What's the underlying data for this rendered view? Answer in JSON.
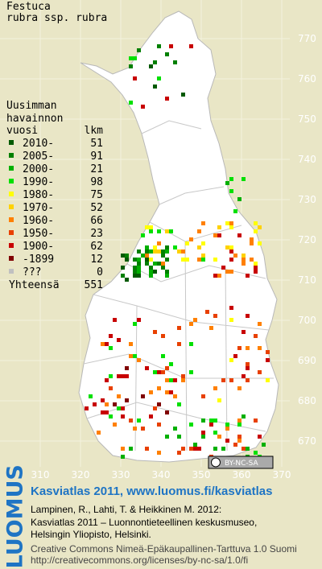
{
  "title": [
    "Festuca",
    "rubra ssp. rubra"
  ],
  "legend": {
    "heading": [
      "Uusimman",
      "havainnon"
    ],
    "col_left": "vuosi",
    "col_right": "lkm",
    "rows": [
      {
        "label": "2010-",
        "count": 51,
        "color": "#005a00"
      },
      {
        "label": "2005-",
        "count": 91,
        "color": "#008000"
      },
      {
        "label": "2000-",
        "count": 21,
        "color": "#00b000"
      },
      {
        "label": "1990-",
        "count": 98,
        "color": "#00e000"
      },
      {
        "label": "1980-",
        "count": 75,
        "color": "#ffff00"
      },
      {
        "label": "1970-",
        "count": 52,
        "color": "#ffd200"
      },
      {
        "label": "1960-",
        "count": 66,
        "color": "#ff8000"
      },
      {
        "label": "1950-",
        "count": 23,
        "color": "#e84000"
      },
      {
        "label": "1900-",
        "count": 62,
        "color": "#c80000"
      },
      {
        "label": "-1899",
        "count": 12,
        "color": "#800000"
      },
      {
        "label": "???",
        "count": 0,
        "color": "#c0c0c0"
      }
    ],
    "total": {
      "label": "Yhteensä",
      "count": 551
    }
  },
  "grid": {
    "y_labels": [
      "770",
      "760",
      "750",
      "740",
      "730",
      "720",
      "710",
      "700",
      "690",
      "680",
      "670"
    ],
    "x_labels": [
      "310",
      "320",
      "330",
      "340",
      "350",
      "360",
      "370"
    ]
  },
  "cc_badge": "BY-NC-SA",
  "footer": {
    "logo": "LUOMUS",
    "link": "Kasviatlas 2011, www.luomus.fi/kasviatlas",
    "citation": [
      "Lampinen, R., Lahti, T. & Heikkinen M. 2012:",
      "Kasviatlas 2011 – Luonnontieteellinen keskusmuseo,",
      "Helsingin Yliopisto, Helsinki."
    ],
    "license": [
      "Creative Commons Nimeä-Epäkaupallinen-Tarttuva 1.0 Suomi",
      "http://creativecommons.org/licenses/by-nc-sa/1.0/fi"
    ]
  }
}
